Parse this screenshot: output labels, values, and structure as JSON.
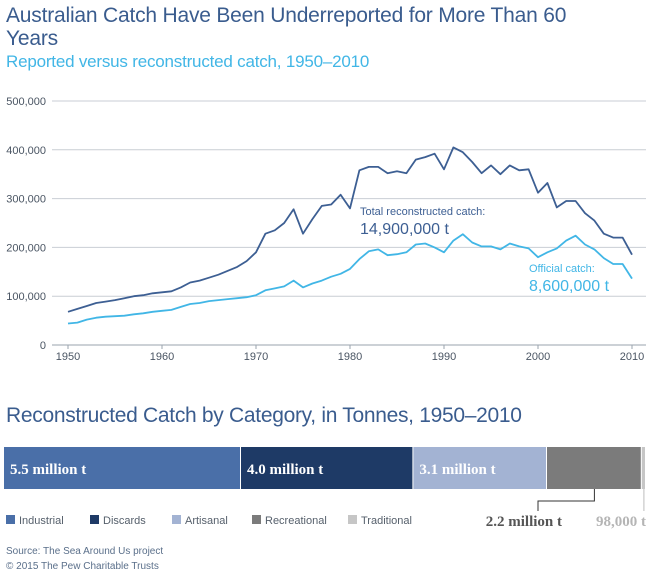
{
  "header": {
    "title": "Australian Catch Have Been Underreported for More Than 60 Years",
    "subtitle": "Reported versus reconstructed catch, 1950–2010"
  },
  "section2": {
    "title": "Reconstructed Catch by Category, in Tonnes, 1950–2010"
  },
  "footer": {
    "source": "Source: The Sea Around Us project",
    "copyright": "© 2015 The Pew Charitable Trusts"
  },
  "chart_data": [
    {
      "type": "line",
      "ylim": [
        0,
        500000
      ],
      "xlim": [
        1949,
        2011
      ],
      "yticks": [
        0,
        100000,
        200000,
        300000,
        400000,
        500000
      ],
      "ytick_labels": [
        "0",
        "100,000",
        "200,000",
        "300,000",
        "400,000",
        "500,000"
      ],
      "xticks": [
        1950,
        1960,
        1970,
        1980,
        1990,
        2000,
        2010
      ],
      "grid": "horizontal",
      "x": [
        1950,
        1951,
        1952,
        1953,
        1954,
        1955,
        1956,
        1957,
        1958,
        1959,
        1960,
        1961,
        1962,
        1963,
        1964,
        1965,
        1966,
        1967,
        1968,
        1969,
        1970,
        1971,
        1972,
        1973,
        1974,
        1975,
        1976,
        1977,
        1978,
        1979,
        1980,
        1981,
        1982,
        1983,
        1984,
        1985,
        1986,
        1987,
        1988,
        1989,
        1990,
        1991,
        1992,
        1993,
        1994,
        1995,
        1996,
        1997,
        1998,
        1999,
        2000,
        2001,
        2002,
        2003,
        2004,
        2005,
        2006,
        2007,
        2008,
        2009,
        2010
      ],
      "series": [
        {
          "color": "#3d5f93",
          "values": [
            68000,
            74000,
            80000,
            86000,
            89000,
            92000,
            96000,
            100000,
            102000,
            106000,
            108000,
            110000,
            118000,
            128000,
            132000,
            138000,
            144000,
            152000,
            160000,
            172000,
            190000,
            228000,
            235000,
            250000,
            278000,
            228000,
            258000,
            285000,
            288000,
            308000,
            280000,
            358000,
            365000,
            365000,
            352000,
            356000,
            352000,
            380000,
            385000,
            392000,
            360000,
            405000,
            395000,
            375000,
            352000,
            368000,
            350000,
            368000,
            358000,
            360000,
            312000,
            332000,
            282000,
            295000,
            295000,
            270000,
            255000,
            228000,
            220000,
            220000,
            185000
          ],
          "label": "Total reconstructed catch:",
          "value_label": "14,900,000 t"
        },
        {
          "color": "#41b6e6",
          "values": [
            44000,
            46000,
            52000,
            56000,
            58000,
            59000,
            60000,
            63000,
            65000,
            68000,
            70000,
            72000,
            78000,
            84000,
            86000,
            90000,
            92000,
            94000,
            96000,
            98000,
            102000,
            112000,
            116000,
            120000,
            132000,
            118000,
            126000,
            132000,
            140000,
            146000,
            156000,
            176000,
            192000,
            196000,
            184000,
            186000,
            190000,
            206000,
            208000,
            200000,
            190000,
            214000,
            227000,
            210000,
            202000,
            202000,
            196000,
            208000,
            202000,
            198000,
            180000,
            190000,
            198000,
            214000,
            224000,
            206000,
            196000,
            178000,
            166000,
            166000,
            136000
          ],
          "label": "Official catch:",
          "value_label": "8,600,000 t"
        }
      ]
    },
    {
      "type": "bar",
      "stacked": true,
      "orientation": "horizontal",
      "legend_placement": "bottom",
      "categories": [
        "Industrial",
        "Discards",
        "Artisanal",
        "Recreational",
        "Traditional"
      ],
      "values": [
        5500000,
        4000000,
        3100000,
        2200000,
        98000
      ],
      "value_labels": [
        "5.5 million t",
        "4.0 million t",
        "3.1 million t",
        "2.2 million t",
        "98,000 t"
      ],
      "colors": [
        "#4a6fa8",
        "#1e3a66",
        "#a3b3d3",
        "#7b7b7b",
        "#c6c6c6"
      ]
    }
  ]
}
